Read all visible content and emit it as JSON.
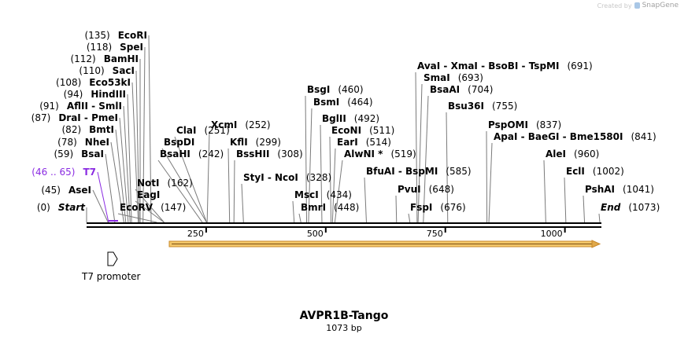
{
  "credit": {
    "prefix": "Created by",
    "brand": "SnapGene"
  },
  "title": "AVPR1B-Tango",
  "subtitle": "1073 bp",
  "ticks": [
    {
      "label": "250",
      "pos": 250
    },
    {
      "label": "500",
      "pos": 500
    },
    {
      "label": "750",
      "pos": 750
    },
    {
      "label": "1000",
      "pos": 1000
    }
  ],
  "features": {
    "promoter": {
      "label": "T7 promoter",
      "start": 46,
      "end": 65
    },
    "orf": {
      "start": 200,
      "end": 1080
    }
  },
  "sites": [
    {
      "id": "start",
      "pos": 0,
      "name": "Start",
      "num": "(0)",
      "italic": true
    },
    {
      "id": "asei",
      "pos": 45,
      "name": "AseI",
      "num": "(45)"
    },
    {
      "id": "t7",
      "pos": 46,
      "name": "T7",
      "num": "(46 .. 65)",
      "purple": true
    },
    {
      "id": "bsai",
      "pos": 59,
      "name": "BsaI",
      "num": "(59)"
    },
    {
      "id": "nhei",
      "pos": 78,
      "name": "NheI",
      "num": "(78)"
    },
    {
      "id": "bmti",
      "pos": 82,
      "name": "BmtI",
      "num": "(82)"
    },
    {
      "id": "drai",
      "pos": 87,
      "name": "DraI  -  PmeI",
      "num": "(87)"
    },
    {
      "id": "aflii",
      "pos": 91,
      "name": "AflII  -  SmlI",
      "num": "(91)"
    },
    {
      "id": "hindiii",
      "pos": 94,
      "name": "HindIII",
      "num": "(94)"
    },
    {
      "id": "eco53ki",
      "pos": 108,
      "name": "Eco53kI",
      "num": "(108)"
    },
    {
      "id": "saci",
      "pos": 110,
      "name": "SacI",
      "num": "(110)"
    },
    {
      "id": "bamhi",
      "pos": 112,
      "name": "BamHI",
      "num": "(112)"
    },
    {
      "id": "spei",
      "pos": 118,
      "name": "SpeI",
      "num": "(118)"
    },
    {
      "id": "ecori",
      "pos": 135,
      "name": "EcoRI",
      "num": "(135)"
    },
    {
      "id": "ecorv",
      "pos": 147,
      "name": "EcoRV",
      "num": "(147)"
    },
    {
      "id": "eagi",
      "pos": 162,
      "name": "EagI",
      "num": ""
    },
    {
      "id": "noti",
      "pos": 162,
      "name": "NotI",
      "num": "(162)"
    },
    {
      "id": "bsahi",
      "pos": 242,
      "name": "BsaHI",
      "num": "(242)"
    },
    {
      "id": "bspdi",
      "pos": 251,
      "name": "BspDI",
      "num": ""
    },
    {
      "id": "clai",
      "pos": 251,
      "name": "ClaI",
      "num": "(251)"
    },
    {
      "id": "xcmi",
      "pos": 252,
      "name": "XcmI",
      "num": "(252)"
    },
    {
      "id": "kfli",
      "pos": 299,
      "name": "KflI",
      "num": "(299)"
    },
    {
      "id": "bsshii",
      "pos": 308,
      "name": "BssHII",
      "num": "(308)"
    },
    {
      "id": "styi",
      "pos": 328,
      "name": "StyI  -  NcoI",
      "num": "(328)"
    },
    {
      "id": "msci",
      "pos": 434,
      "name": "MscI",
      "num": "(434)"
    },
    {
      "id": "bmri",
      "pos": 448,
      "name": "BmrI",
      "num": "(448)"
    },
    {
      "id": "bsgi",
      "pos": 460,
      "name": "BsgI",
      "num": "(460)"
    },
    {
      "id": "bsmi",
      "pos": 464,
      "name": "BsmI",
      "num": "(464)"
    },
    {
      "id": "bglii",
      "pos": 492,
      "name": "BglII",
      "num": "(492)"
    },
    {
      "id": "econi",
      "pos": 511,
      "name": "EcoNI",
      "num": "(511)"
    },
    {
      "id": "eari",
      "pos": 514,
      "name": "EarI",
      "num": "(514)"
    },
    {
      "id": "alwni",
      "pos": 519,
      "name": "AlwNI *",
      "num": "(519)"
    },
    {
      "id": "bfuai",
      "pos": 585,
      "name": "BfuAI  -  BspMI",
      "num": "(585)"
    },
    {
      "id": "pvui",
      "pos": 648,
      "name": "PvuI",
      "num": "(648)"
    },
    {
      "id": "fspi",
      "pos": 676,
      "name": "FspI",
      "num": "(676)"
    },
    {
      "id": "avai",
      "pos": 691,
      "name": "AvaI  -  XmaI  -  BsoBI  -  TspMI",
      "num": "(691)"
    },
    {
      "id": "smai",
      "pos": 693,
      "name": "SmaI",
      "num": "(693)"
    },
    {
      "id": "bsaai",
      "pos": 704,
      "name": "BsaAI",
      "num": "(704)"
    },
    {
      "id": "bsu36i",
      "pos": 755,
      "name": "Bsu36I",
      "num": "(755)"
    },
    {
      "id": "pspomi",
      "pos": 837,
      "name": "PspOMI",
      "num": "(837)"
    },
    {
      "id": "apai",
      "pos": 841,
      "name": "ApaI  -  BaeGI  -  Bme1580I",
      "num": "(841)"
    },
    {
      "id": "alei",
      "pos": 960,
      "name": "AleI",
      "num": "(960)"
    },
    {
      "id": "ecli",
      "pos": 1002,
      "name": "EclI",
      "num": "(1002)"
    },
    {
      "id": "pshai",
      "pos": 1041,
      "name": "PshAI",
      "num": "(1041)"
    },
    {
      "id": "end",
      "pos": 1073,
      "name": "End",
      "num": "(1073)",
      "italic": true
    }
  ]
}
